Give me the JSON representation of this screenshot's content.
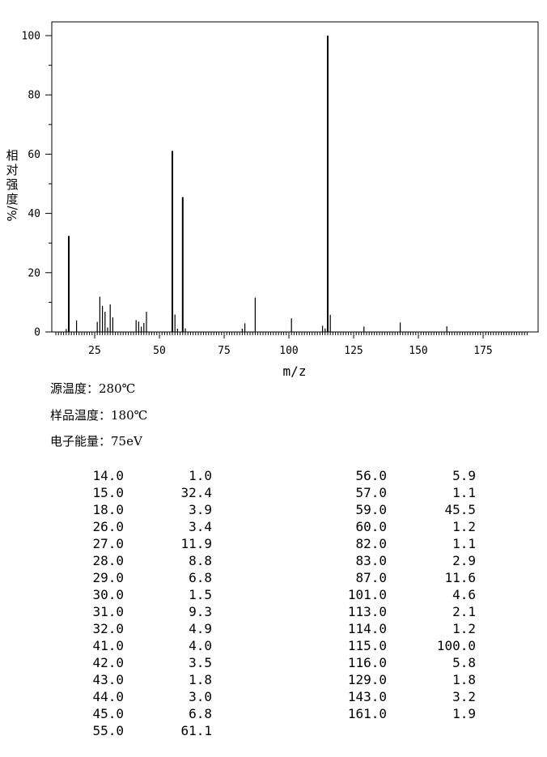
{
  "chart_data": {
    "type": "bar",
    "xlabel": "m/z",
    "ylabel_chars": [
      "相",
      "对",
      "强",
      "度",
      "%/"
    ],
    "xlim": [
      10,
      192
    ],
    "ylim": [
      0,
      100
    ],
    "xticks": [
      25,
      50,
      75,
      100,
      125,
      150,
      175
    ],
    "yticks": [
      0,
      20,
      40,
      60,
      80,
      100
    ],
    "peaks": [
      {
        "mz": 14.0,
        "intensity": 1.0
      },
      {
        "mz": 15.0,
        "intensity": 32.4
      },
      {
        "mz": 18.0,
        "intensity": 3.9
      },
      {
        "mz": 26.0,
        "intensity": 3.4
      },
      {
        "mz": 27.0,
        "intensity": 11.9
      },
      {
        "mz": 28.0,
        "intensity": 8.8
      },
      {
        "mz": 29.0,
        "intensity": 6.8
      },
      {
        "mz": 30.0,
        "intensity": 1.5
      },
      {
        "mz": 31.0,
        "intensity": 9.3
      },
      {
        "mz": 32.0,
        "intensity": 4.9
      },
      {
        "mz": 41.0,
        "intensity": 4.0
      },
      {
        "mz": 42.0,
        "intensity": 3.5
      },
      {
        "mz": 43.0,
        "intensity": 1.8
      },
      {
        "mz": 44.0,
        "intensity": 3.0
      },
      {
        "mz": 45.0,
        "intensity": 6.8
      },
      {
        "mz": 55.0,
        "intensity": 61.1
      },
      {
        "mz": 56.0,
        "intensity": 5.9
      },
      {
        "mz": 57.0,
        "intensity": 1.1
      },
      {
        "mz": 59.0,
        "intensity": 45.5
      },
      {
        "mz": 60.0,
        "intensity": 1.2
      },
      {
        "mz": 82.0,
        "intensity": 1.1
      },
      {
        "mz": 83.0,
        "intensity": 2.9
      },
      {
        "mz": 87.0,
        "intensity": 11.6
      },
      {
        "mz": 101.0,
        "intensity": 4.6
      },
      {
        "mz": 113.0,
        "intensity": 2.1
      },
      {
        "mz": 114.0,
        "intensity": 1.2
      },
      {
        "mz": 115.0,
        "intensity": 100.0
      },
      {
        "mz": 116.0,
        "intensity": 5.8
      },
      {
        "mz": 129.0,
        "intensity": 1.8
      },
      {
        "mz": 143.0,
        "intensity": 3.2
      },
      {
        "mz": 161.0,
        "intensity": 1.9
      }
    ]
  },
  "conditions": {
    "source_temp": "源温度：280℃",
    "sample_temp": "样品温度：180℃",
    "electron_energy": "电子能量：75eV"
  },
  "peak_table": {
    "left": [
      [
        "14.0",
        "1.0"
      ],
      [
        "15.0",
        "32.4"
      ],
      [
        "18.0",
        "3.9"
      ],
      [
        "26.0",
        "3.4"
      ],
      [
        "27.0",
        "11.9"
      ],
      [
        "28.0",
        "8.8"
      ],
      [
        "29.0",
        "6.8"
      ],
      [
        "30.0",
        "1.5"
      ],
      [
        "31.0",
        "9.3"
      ],
      [
        "32.0",
        "4.9"
      ],
      [
        "41.0",
        "4.0"
      ],
      [
        "42.0",
        "3.5"
      ],
      [
        "43.0",
        "1.8"
      ],
      [
        "44.0",
        "3.0"
      ],
      [
        "45.0",
        "6.8"
      ],
      [
        "55.0",
        "61.1"
      ]
    ],
    "right": [
      [
        "56.0",
        "5.9"
      ],
      [
        "57.0",
        "1.1"
      ],
      [
        "59.0",
        "45.5"
      ],
      [
        "60.0",
        "1.2"
      ],
      [
        "82.0",
        "1.1"
      ],
      [
        "83.0",
        "2.9"
      ],
      [
        "87.0",
        "11.6"
      ],
      [
        "101.0",
        "4.6"
      ],
      [
        "113.0",
        "2.1"
      ],
      [
        "114.0",
        "1.2"
      ],
      [
        "115.0",
        "100.0"
      ],
      [
        "116.0",
        "5.8"
      ],
      [
        "129.0",
        "1.8"
      ],
      [
        "143.0",
        "3.2"
      ],
      [
        "161.0",
        "1.9"
      ]
    ]
  }
}
